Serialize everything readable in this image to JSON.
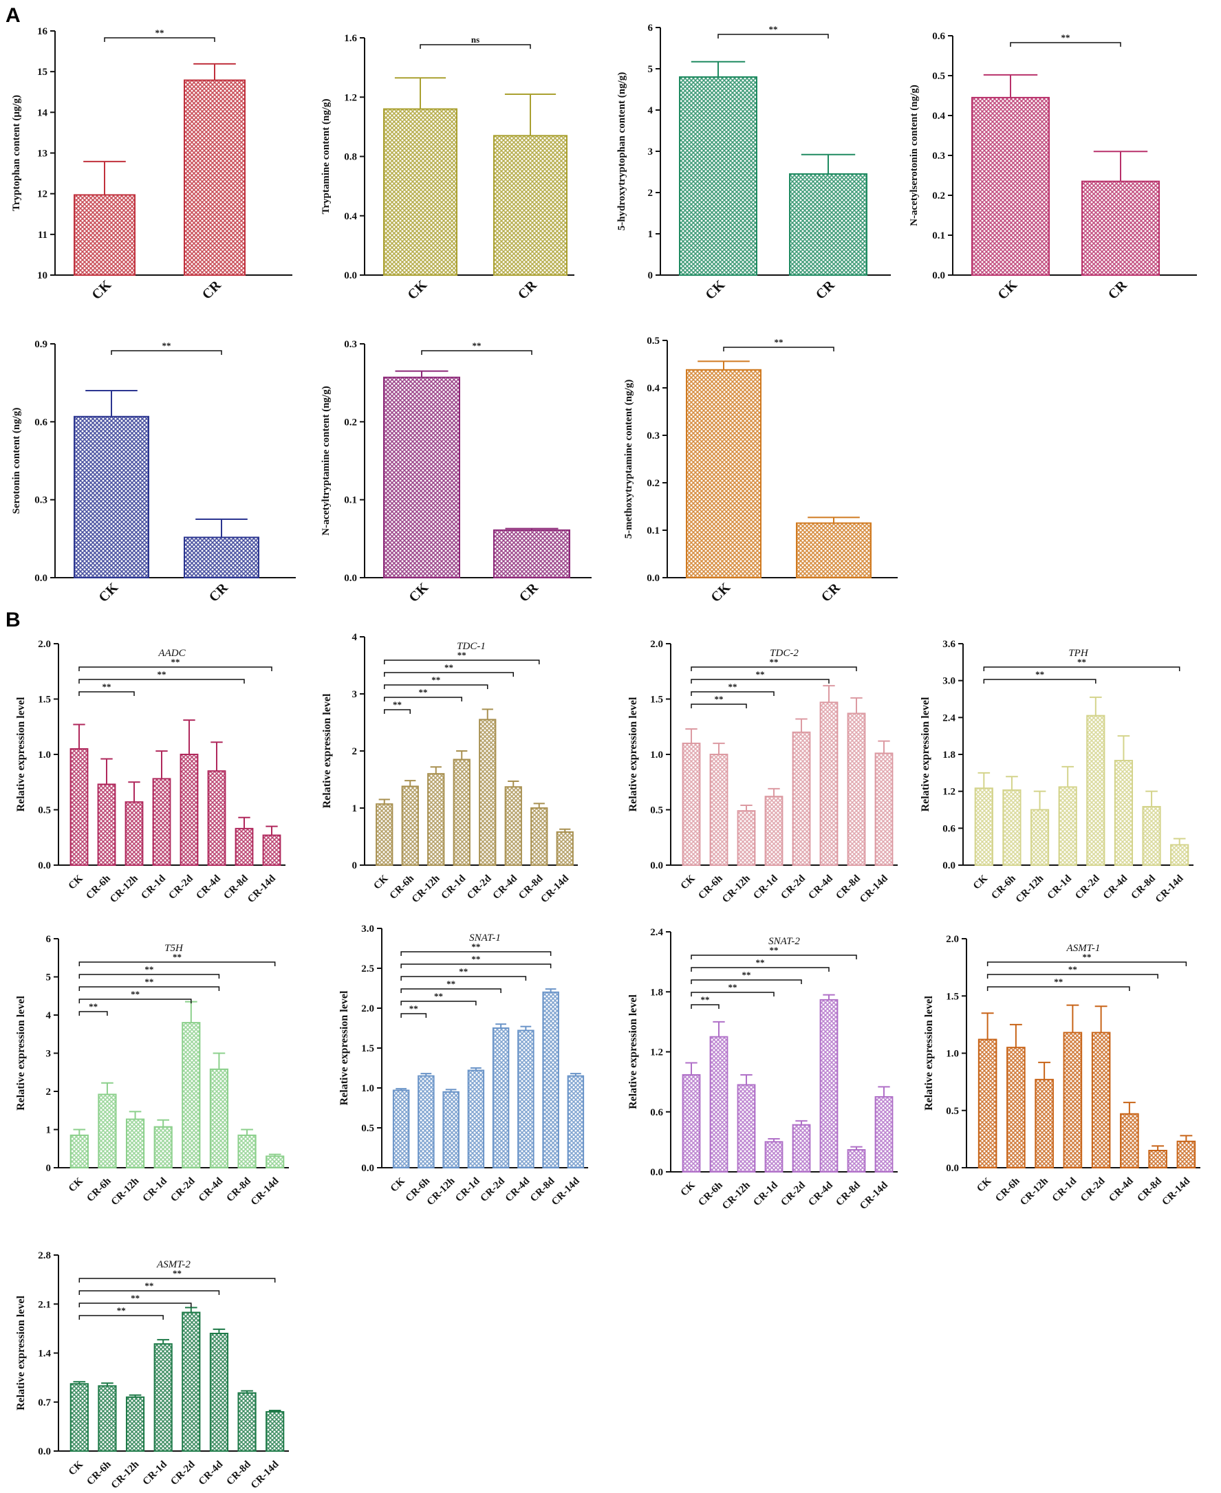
{
  "figure": {
    "panel_labels": [
      "A",
      "B"
    ]
  },
  "colors": {
    "tryptophan": "#c0303c",
    "tryptamine": "#aaa030",
    "hydroxytryptophan": "#1e8a60",
    "acetylserotonin": "#b8306a",
    "serotonin": "#2b3590",
    "acetyltryptamine": "#8c2878",
    "methoxytryptamine": "#d07a20",
    "AADC": "#b0285c",
    "TDC1": "#a89050",
    "TDC2": "#dc9aa2",
    "TPH": "#d4d48c",
    "T5H": "#8cd08c",
    "SNAT1": "#6a94c8",
    "SNAT2": "#b070c8",
    "ASMT1": "#c86418",
    "ASMT2": "#1e7a48"
  },
  "chart_data": [
    {
      "panel": "A",
      "type": "bar",
      "color_key": "tryptophan",
      "title": "",
      "ylabel": "Tryptophan content (μg/g)",
      "categories": [
        "CK",
        "CR"
      ],
      "values": [
        11.97,
        14.79
      ],
      "errors": [
        0.82,
        0.4
      ],
      "ylim": [
        10,
        16
      ],
      "yticks": [
        "10",
        "11",
        "12",
        "13",
        "14",
        "15",
        "16"
      ],
      "comparisons": [
        {
          "from": "CK",
          "to": "CR",
          "label": "**"
        }
      ]
    },
    {
      "panel": "A",
      "type": "bar",
      "color_key": "tryptamine",
      "title": "",
      "ylabel": "Tryptamine content (ng/g)",
      "categories": [
        "CK",
        "CR"
      ],
      "values": [
        1.12,
        0.94
      ],
      "errors": [
        0.21,
        0.28
      ],
      "ylim": [
        0,
        1.6
      ],
      "yticks": [
        "0.0",
        "0.4",
        "0.8",
        "1.2",
        "1.6"
      ],
      "comparisons": [
        {
          "from": "CK",
          "to": "CR",
          "label": "ns"
        }
      ]
    },
    {
      "panel": "A",
      "type": "bar",
      "color_key": "hydroxytryptophan",
      "title": "",
      "ylabel": "5-hydroxytryptophan content (ng/g)",
      "categories": [
        "CK",
        "CR"
      ],
      "values": [
        4.8,
        2.45
      ],
      "errors": [
        0.37,
        0.47
      ],
      "ylim": [
        0,
        6
      ],
      "yticks": [
        "0",
        "1",
        "2",
        "3",
        "4",
        "5",
        "6"
      ],
      "comparisons": [
        {
          "from": "CK",
          "to": "CR",
          "label": "**"
        }
      ]
    },
    {
      "panel": "A",
      "type": "bar",
      "color_key": "acetylserotonin",
      "title": "",
      "ylabel": "N-acetylserotonin content (ng/g)",
      "categories": [
        "CK",
        "CR"
      ],
      "values": [
        0.445,
        0.235
      ],
      "errors": [
        0.057,
        0.075
      ],
      "ylim": [
        0,
        0.6
      ],
      "yticks": [
        "0.0",
        "0.1",
        "0.2",
        "0.3",
        "0.4",
        "0.5",
        "0.6"
      ],
      "comparisons": [
        {
          "from": "CK",
          "to": "CR",
          "label": "**"
        }
      ]
    },
    {
      "panel": "A",
      "type": "bar",
      "color_key": "serotonin",
      "title": "",
      "ylabel": "Serotonin content (ng/g)",
      "categories": [
        "CK",
        "CR"
      ],
      "values": [
        0.62,
        0.155
      ],
      "errors": [
        0.1,
        0.07
      ],
      "ylim": [
        0,
        0.9
      ],
      "yticks": [
        "0.0",
        "0.3",
        "0.6",
        "0.9"
      ],
      "comparisons": [
        {
          "from": "CK",
          "to": "CR",
          "label": "**"
        }
      ]
    },
    {
      "panel": "A",
      "type": "bar",
      "color_key": "acetyltryptamine",
      "title": "",
      "ylabel": "N-acetyltryptamine content (ng/g)",
      "categories": [
        "CK",
        "CR"
      ],
      "values": [
        0.257,
        0.061
      ],
      "errors": [
        0.008,
        0.002
      ],
      "ylim": [
        0,
        0.3
      ],
      "yticks": [
        "0.0",
        "0.1",
        "0.2",
        "0.3"
      ],
      "comparisons": [
        {
          "from": "CK",
          "to": "CR",
          "label": "**"
        }
      ]
    },
    {
      "panel": "A",
      "type": "bar",
      "color_key": "methoxytryptamine",
      "title": "",
      "ylabel": "5-methoxytryptamine content (ng/g)",
      "categories": [
        "CK",
        "CR"
      ],
      "values": [
        0.438,
        0.115
      ],
      "errors": [
        0.018,
        0.012
      ],
      "ylim": [
        0,
        0.5
      ],
      "yticks": [
        "0.0",
        "0.1",
        "0.2",
        "0.3",
        "0.4",
        "0.5"
      ],
      "comparisons": [
        {
          "from": "CK",
          "to": "CR",
          "label": "**"
        }
      ]
    },
    {
      "panel": "B",
      "type": "bar",
      "color_key": "AADC",
      "title": "AADC",
      "ylabel": "Relative expression level",
      "categories": [
        "CK",
        "CR-6h",
        "CR-12h",
        "CR-1d",
        "CR-2d",
        "CR-4d",
        "CR-8d",
        "CR-14d"
      ],
      "values": [
        1.05,
        0.73,
        0.57,
        0.78,
        1.0,
        0.85,
        0.33,
        0.27
      ],
      "errors": [
        0.22,
        0.23,
        0.18,
        0.25,
        0.31,
        0.26,
        0.1,
        0.08
      ],
      "ylim": [
        0,
        2.0
      ],
      "yticks": [
        "0.0",
        "0.5",
        "1.0",
        "1.5",
        "2.0"
      ],
      "comparisons": [
        {
          "from": "CK",
          "to": "CR-12h",
          "label": "**"
        },
        {
          "from": "CK",
          "to": "CR-8d",
          "label": "**"
        },
        {
          "from": "CK",
          "to": "CR-14d",
          "label": "**"
        }
      ]
    },
    {
      "panel": "B",
      "type": "bar",
      "color_key": "TDC1",
      "title": "TDC-1",
      "ylabel": "Relative expression level",
      "categories": [
        "CK",
        "CR-6h",
        "CR-12h",
        "CR-1d",
        "CR-2d",
        "CR-4d",
        "CR-8d",
        "CR-14d"
      ],
      "values": [
        1.07,
        1.38,
        1.6,
        1.85,
        2.55,
        1.37,
        1.0,
        0.58
      ],
      "errors": [
        0.08,
        0.1,
        0.12,
        0.15,
        0.18,
        0.1,
        0.08,
        0.05
      ],
      "ylim": [
        0,
        4
      ],
      "yticks": [
        "0",
        "1",
        "2",
        "3",
        "4"
      ],
      "comparisons": [
        {
          "from": "CK",
          "to": "CR-6h",
          "label": "**"
        },
        {
          "from": "CK",
          "to": "CR-1d",
          "label": "**"
        },
        {
          "from": "CK",
          "to": "CR-2d",
          "label": "**"
        },
        {
          "from": "CK",
          "to": "CR-4d",
          "label": "**"
        },
        {
          "from": "CK",
          "to": "CR-8d",
          "label": "**"
        }
      ]
    },
    {
      "panel": "B",
      "type": "bar",
      "color_key": "TDC2",
      "title": "TDC-2",
      "ylabel": "Relative expression level",
      "categories": [
        "CK",
        "CR-6h",
        "CR-12h",
        "CR-1d",
        "CR-2d",
        "CR-4d",
        "CR-8d",
        "CR-14d"
      ],
      "values": [
        1.1,
        1.0,
        0.49,
        0.62,
        1.2,
        1.47,
        1.37,
        1.01
      ],
      "errors": [
        0.13,
        0.1,
        0.05,
        0.07,
        0.12,
        0.15,
        0.14,
        0.11
      ],
      "ylim": [
        0,
        2.0
      ],
      "yticks": [
        "0.0",
        "0.5",
        "1.0",
        "1.5",
        "2.0"
      ],
      "comparisons": [
        {
          "from": "CK",
          "to": "CR-12h",
          "label": "**"
        },
        {
          "from": "CK",
          "to": "CR-1d",
          "label": "**"
        },
        {
          "from": "CK",
          "to": "CR-4d",
          "label": "**"
        },
        {
          "from": "CK",
          "to": "CR-8d",
          "label": "**"
        }
      ]
    },
    {
      "panel": "B",
      "type": "bar",
      "color_key": "TPH",
      "title": "TPH",
      "ylabel": "Relative expression level",
      "categories": [
        "CK",
        "CR-6h",
        "CR-12h",
        "CR-1d",
        "CR-2d",
        "CR-4d",
        "CR-8d",
        "CR-14d"
      ],
      "values": [
        1.25,
        1.22,
        0.9,
        1.27,
        2.43,
        1.7,
        0.95,
        0.33
      ],
      "errors": [
        0.25,
        0.22,
        0.3,
        0.33,
        0.3,
        0.4,
        0.25,
        0.1
      ],
      "ylim": [
        0,
        3.6
      ],
      "yticks": [
        "0.0",
        "0.6",
        "1.2",
        "1.8",
        "2.4",
        "3.0",
        "3.6"
      ],
      "comparisons": [
        {
          "from": "CK",
          "to": "CR-2d",
          "label": "**"
        },
        {
          "from": "CK",
          "to": "CR-14d",
          "label": "**"
        }
      ]
    },
    {
      "panel": "B",
      "type": "bar",
      "color_key": "T5H",
      "title": "T5H",
      "ylabel": "Relative expression level",
      "categories": [
        "CK",
        "CR-6h",
        "CR-12h",
        "CR-1d",
        "CR-2d",
        "CR-4d",
        "CR-8d",
        "CR-14d"
      ],
      "values": [
        0.85,
        1.92,
        1.27,
        1.07,
        3.8,
        2.58,
        0.85,
        0.3
      ],
      "errors": [
        0.15,
        0.3,
        0.2,
        0.18,
        0.55,
        0.42,
        0.15,
        0.05
      ],
      "ylim": [
        0,
        6
      ],
      "yticks": [
        "0",
        "1",
        "2",
        "3",
        "4",
        "5",
        "6"
      ],
      "comparisons": [
        {
          "from": "CK",
          "to": "CR-6h",
          "label": "**"
        },
        {
          "from": "CK",
          "to": "CR-2d",
          "label": "**"
        },
        {
          "from": "CK",
          "to": "CR-4d",
          "label": "**"
        },
        {
          "from": "CK",
          "to": "CR-4d",
          "label": "**"
        },
        {
          "from": "CK",
          "to": "CR-14d",
          "label": "**"
        }
      ]
    },
    {
      "panel": "B",
      "type": "bar",
      "color_key": "SNAT1",
      "title": "SNAT-1",
      "ylabel": "Relative expression level",
      "categories": [
        "CK",
        "CR-6h",
        "CR-12h",
        "CR-1d",
        "CR-2d",
        "CR-4d",
        "CR-8d",
        "CR-14d"
      ],
      "values": [
        0.97,
        1.15,
        0.95,
        1.22,
        1.75,
        1.72,
        2.2,
        1.15
      ],
      "errors": [
        0.02,
        0.03,
        0.03,
        0.03,
        0.05,
        0.05,
        0.04,
        0.03
      ],
      "ylim": [
        0,
        3.0
      ],
      "yticks": [
        "0.0",
        "0.5",
        "1.0",
        "1.5",
        "2.0",
        "2.5",
        "3.0"
      ],
      "comparisons": [
        {
          "from": "CK",
          "to": "CR-6h",
          "label": "**"
        },
        {
          "from": "CK",
          "to": "CR-1d",
          "label": "**"
        },
        {
          "from": "CK",
          "to": "CR-2d",
          "label": "**"
        },
        {
          "from": "CK",
          "to": "CR-4d",
          "label": "**"
        },
        {
          "from": "CK",
          "to": "CR-8d",
          "label": "**"
        },
        {
          "from": "CK",
          "to": "CR-8d",
          "label": "**"
        }
      ]
    },
    {
      "panel": "B",
      "type": "bar",
      "color_key": "SNAT2",
      "title": "SNAT-2",
      "ylabel": "Relative expression level",
      "categories": [
        "CK",
        "CR-6h",
        "CR-12h",
        "CR-1d",
        "CR-2d",
        "CR-4d",
        "CR-8d",
        "CR-14d"
      ],
      "values": [
        0.97,
        1.35,
        0.87,
        0.3,
        0.47,
        1.72,
        0.22,
        0.75
      ],
      "errors": [
        0.12,
        0.15,
        0.1,
        0.03,
        0.04,
        0.05,
        0.03,
        0.1
      ],
      "ylim": [
        0,
        2.4
      ],
      "yticks": [
        "0.0",
        "0.6",
        "1.2",
        "1.8",
        "2.4"
      ],
      "comparisons": [
        {
          "from": "CK",
          "to": "CR-6h",
          "label": "**"
        },
        {
          "from": "CK",
          "to": "CR-1d",
          "label": "**"
        },
        {
          "from": "CK",
          "to": "CR-2d",
          "label": "**"
        },
        {
          "from": "CK",
          "to": "CR-4d",
          "label": "**"
        },
        {
          "from": "CK",
          "to": "CR-8d",
          "label": "**"
        }
      ]
    },
    {
      "panel": "B",
      "type": "bar",
      "color_key": "ASMT1",
      "title": "ASMT-1",
      "ylabel": "Relative expression level",
      "categories": [
        "CK",
        "CR-6h",
        "CR-12h",
        "CR-1d",
        "CR-2d",
        "CR-4d",
        "CR-8d",
        "CR-14d"
      ],
      "values": [
        1.12,
        1.05,
        0.77,
        1.18,
        1.18,
        0.47,
        0.15,
        0.23
      ],
      "errors": [
        0.23,
        0.2,
        0.15,
        0.24,
        0.23,
        0.1,
        0.04,
        0.05
      ],
      "ylim": [
        0,
        2.0
      ],
      "yticks": [
        "0.0",
        "0.5",
        "1.0",
        "1.5",
        "2.0"
      ],
      "comparisons": [
        {
          "from": "CK",
          "to": "CR-4d",
          "label": "**"
        },
        {
          "from": "CK",
          "to": "CR-8d",
          "label": "**"
        },
        {
          "from": "CK",
          "to": "CR-14d",
          "label": "**"
        }
      ]
    },
    {
      "panel": "B",
      "type": "bar",
      "color_key": "ASMT2",
      "title": "ASMT-2",
      "ylabel": "Relative expression level",
      "categories": [
        "CK",
        "CR-6h",
        "CR-12h",
        "CR-1d",
        "CR-2d",
        "CR-4d",
        "CR-8d",
        "CR-14d"
      ],
      "values": [
        0.96,
        0.93,
        0.77,
        1.53,
        1.98,
        1.68,
        0.83,
        0.56
      ],
      "errors": [
        0.03,
        0.04,
        0.03,
        0.06,
        0.07,
        0.06,
        0.03,
        0.02
      ],
      "ylim": [
        0,
        2.8
      ],
      "yticks": [
        "0.0",
        "0.7",
        "1.4",
        "2.1",
        "2.8"
      ],
      "comparisons": [
        {
          "from": "CK",
          "to": "CR-1d",
          "label": "**"
        },
        {
          "from": "CK",
          "to": "CR-2d",
          "label": "**"
        },
        {
          "from": "CK",
          "to": "CR-4d",
          "label": "**"
        },
        {
          "from": "CK",
          "to": "CR-14d",
          "label": "**"
        }
      ]
    }
  ]
}
